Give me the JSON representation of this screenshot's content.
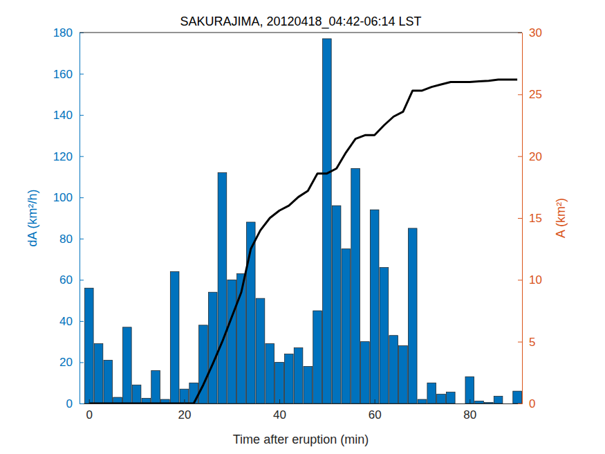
{
  "chart_data": {
    "type": "bar",
    "title": "SAKURAJIMA, 20120418_04:42-06:14 LST",
    "x_label": "Time after eruption (min)",
    "y_label": "dA (km²/h)",
    "y2_label": "A (km²)",
    "x": [
      0,
      2,
      4,
      6,
      8,
      10,
      12,
      14,
      16,
      18,
      20,
      22,
      24,
      26,
      28,
      30,
      32,
      34,
      36,
      38,
      40,
      42,
      44,
      46,
      48,
      50,
      52,
      54,
      56,
      58,
      60,
      62,
      64,
      66,
      68,
      70,
      72,
      74,
      76,
      78,
      80,
      82,
      84,
      86,
      88,
      90
    ],
    "series": [
      {
        "type": "bar",
        "color": "#0072bd",
        "axis": "y",
        "values": [
          56,
          29,
          21,
          3,
          37,
          9,
          2.5,
          16,
          2,
          64,
          7,
          10,
          38,
          54,
          112,
          60,
          63,
          88,
          51,
          29,
          20,
          24,
          27,
          18,
          45,
          177,
          96,
          75,
          114,
          30,
          94,
          66,
          33,
          28,
          85,
          2,
          10,
          4.5,
          5.5,
          0,
          13,
          1.2,
          0.5,
          3.5,
          0,
          6
        ]
      },
      {
        "type": "line",
        "color": "#000000",
        "axis": "y2",
        "values": [
          0,
          0,
          0,
          0,
          0,
          0,
          0,
          0,
          0,
          0,
          0,
          0,
          1.5,
          3.2,
          5,
          7,
          9,
          12.5,
          14,
          15,
          15.6,
          16,
          16.7,
          17.2,
          18.6,
          18.6,
          19,
          20.3,
          21.4,
          21.7,
          21.7,
          22.5,
          23.2,
          23.6,
          25.3,
          25.3,
          25.6,
          25.8,
          26,
          26,
          26,
          26.05,
          26.1,
          26.2,
          26.2,
          26.2
        ]
      }
    ],
    "xlim": [
      -2,
      91
    ],
    "xticks": [
      0,
      20,
      40,
      60,
      80
    ],
    "ylim": [
      0,
      180
    ],
    "yticks": [
      0,
      20,
      40,
      60,
      80,
      100,
      120,
      140,
      160,
      180
    ],
    "y2lim": [
      0,
      30
    ],
    "y2ticks": [
      0,
      5,
      10,
      15,
      20,
      25,
      30
    ],
    "grid": false
  }
}
